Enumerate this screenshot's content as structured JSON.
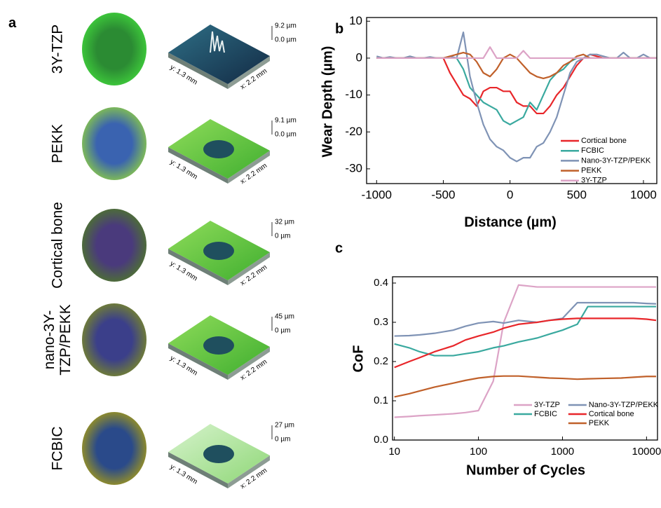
{
  "panel_a": {
    "label": "a",
    "samples": [
      {
        "name": "3Y-TZP",
        "z_max": "9.2 µm",
        "z_min": "0.0 µm",
        "y_size": "y: 1.3 mm",
        "x_size": "x: 2.2 mm"
      },
      {
        "name": "PEKK",
        "z_max": "9.1 µm",
        "z_min": "0.0 µm",
        "y_size": "y: 1.3 mm",
        "x_size": "x: 2.2 mm"
      },
      {
        "name": "Cortical bone",
        "z_max": "32 µm",
        "z_min": "0 µm",
        "y_size": "y: 1.3 mm",
        "x_size": "x: 2.2 mm"
      },
      {
        "name": "nano-3Y-TZP/PEKK",
        "z_max": "45 µm",
        "z_min": "0 µm",
        "y_size": "y: 1.3 mm",
        "x_size": "x: 2.2 mm"
      },
      {
        "name": "FCBIC",
        "z_max": "27 µm",
        "z_min": "0 µm",
        "y_size": "y: 1.3 mm",
        "x_size": "x: 2.2 mm"
      }
    ]
  },
  "chart_data": [
    {
      "type": "line",
      "label": "b",
      "x_label": "Distance (µm)",
      "y_label": "Wear Depth (µm)",
      "x": [
        -1000,
        -950,
        -900,
        -850,
        -800,
        -750,
        -700,
        -650,
        -600,
        -550,
        -500,
        -450,
        -400,
        -350,
        -300,
        -250,
        -200,
        -150,
        -100,
        -50,
        0,
        50,
        100,
        150,
        200,
        250,
        300,
        350,
        400,
        450,
        500,
        550,
        600,
        650,
        700,
        750,
        800,
        850,
        900,
        950,
        1000,
        1050,
        1100
      ],
      "xlim": [
        -1075,
        1100
      ],
      "xticks": [
        -1000,
        -500,
        0,
        500,
        1000
      ],
      "ylim": [
        -34,
        11
      ],
      "yticks": [
        10,
        0,
        -10,
        -20,
        -30
      ],
      "legend": "lower right",
      "legend_ncol": 1,
      "series": [
        {
          "name": "Cortical bone",
          "color": "#e8262a",
          "values": [
            0,
            0,
            0,
            0,
            0,
            0,
            0,
            0,
            0,
            0,
            0,
            -4,
            -7,
            -10,
            -11,
            -13,
            -9,
            -8,
            -8,
            -9,
            -9,
            -12,
            -13,
            -13,
            -15,
            -15,
            -13,
            -10,
            -8,
            -5,
            -2,
            0,
            1,
            0.5,
            0,
            0,
            0,
            0,
            0,
            0,
            0,
            0,
            0
          ]
        },
        {
          "name": "FCBIC",
          "color": "#3aa99f",
          "values": [
            0,
            0,
            0,
            0,
            0,
            0,
            0,
            0,
            0,
            0,
            0,
            0,
            0,
            -3,
            -8,
            -10,
            -12,
            -13,
            -14,
            -17,
            -18,
            -17,
            -16,
            -12,
            -14,
            -10,
            -6,
            -4,
            -3,
            -1,
            0,
            0,
            0,
            0,
            0,
            0,
            0,
            0,
            0,
            0,
            0,
            0,
            0
          ]
        },
        {
          "name": "Nano-3Y-TZP/PEKK",
          "color": "#7f93b5",
          "values": [
            0.5,
            0,
            0.3,
            0,
            0,
            0.5,
            0,
            0,
            0.3,
            0,
            0,
            0.5,
            0,
            7,
            -5,
            -12,
            -18,
            -22,
            -24,
            -25,
            -27,
            -28,
            -27,
            -27,
            -24,
            -23,
            -20,
            -16,
            -10,
            -4,
            -1,
            0,
            1,
            1,
            0.5,
            0,
            0,
            1.5,
            0,
            0,
            1,
            0,
            0
          ]
        },
        {
          "name": "PEKK",
          "color": "#c0602a",
          "values": [
            0,
            0,
            0,
            0,
            0,
            0,
            0,
            0,
            0,
            0,
            0,
            0.5,
            1,
            1.5,
            1,
            -1,
            -4,
            -5,
            -3,
            0,
            1,
            0,
            -2,
            -4,
            -5,
            -5.5,
            -5,
            -4,
            -2,
            -1,
            0.5,
            1,
            0,
            0,
            0,
            0,
            0,
            0,
            0,
            0,
            0,
            0,
            0
          ]
        },
        {
          "name": "3Y-TZP",
          "color": "#dca3c6",
          "values": [
            0,
            0,
            0,
            0,
            0,
            0,
            0,
            0,
            0,
            0,
            0,
            0,
            0,
            0,
            0,
            0,
            0,
            3,
            0,
            0,
            0,
            0,
            2,
            0,
            0,
            0,
            0,
            0,
            0,
            0,
            0,
            0,
            0,
            0,
            0,
            0,
            0,
            0,
            0,
            0,
            0,
            0,
            0
          ]
        }
      ]
    },
    {
      "type": "line",
      "label": "c",
      "x_label": "Number of Cycles",
      "y_label": "CoF",
      "xscale": "log",
      "x": [
        10,
        15,
        20,
        30,
        50,
        70,
        100,
        150,
        200,
        300,
        500,
        700,
        1000,
        1500,
        2000,
        3000,
        5000,
        7000,
        10000,
        13000
      ],
      "xlim": [
        9.5,
        13500
      ],
      "xticks": [
        10,
        100,
        1000,
        10000
      ],
      "ylim": [
        0,
        0.416
      ],
      "yticks": [
        {
          "value": 0,
          "label": "0.0"
        },
        0.1,
        0.2,
        0.3,
        0.4
      ],
      "legend": "lower right",
      "legend_ncol": 2,
      "series": [
        {
          "name": "3Y-TZP",
          "color": "#dca3c6",
          "values": [
            0.058,
            0.06,
            0.062,
            0.064,
            0.067,
            0.07,
            0.075,
            0.15,
            0.3,
            0.395,
            0.39,
            0.39,
            0.39,
            0.39,
            0.39,
            0.39,
            0.39,
            0.39,
            0.39,
            0.39
          ]
        },
        {
          "name": "FCBIC",
          "color": "#3aa99f",
          "values": [
            0.245,
            0.235,
            0.225,
            0.215,
            0.215,
            0.22,
            0.225,
            0.235,
            0.24,
            0.25,
            0.26,
            0.27,
            0.28,
            0.295,
            0.34,
            0.34,
            0.34,
            0.34,
            0.34,
            0.34
          ]
        },
        {
          "name": "Nano-3Y-TZP/PEKK",
          "color": "#7f93b5",
          "values": [
            0.265,
            0.266,
            0.268,
            0.272,
            0.28,
            0.29,
            0.298,
            0.302,
            0.298,
            0.305,
            0.3,
            0.305,
            0.31,
            0.35,
            0.35,
            0.35,
            0.35,
            0.35,
            0.348,
            0.347
          ]
        },
        {
          "name": "Cortical bone",
          "color": "#e8262a",
          "values": [
            0.185,
            0.2,
            0.21,
            0.225,
            0.24,
            0.255,
            0.265,
            0.275,
            0.285,
            0.295,
            0.3,
            0.305,
            0.308,
            0.31,
            0.31,
            0.31,
            0.31,
            0.31,
            0.308,
            0.305
          ]
        },
        {
          "name": "PEKK",
          "color": "#c0602a",
          "values": [
            0.11,
            0.118,
            0.125,
            0.135,
            0.145,
            0.152,
            0.158,
            0.162,
            0.163,
            0.163,
            0.16,
            0.158,
            0.157,
            0.155,
            0.156,
            0.157,
            0.158,
            0.16,
            0.162,
            0.162
          ]
        }
      ]
    }
  ]
}
